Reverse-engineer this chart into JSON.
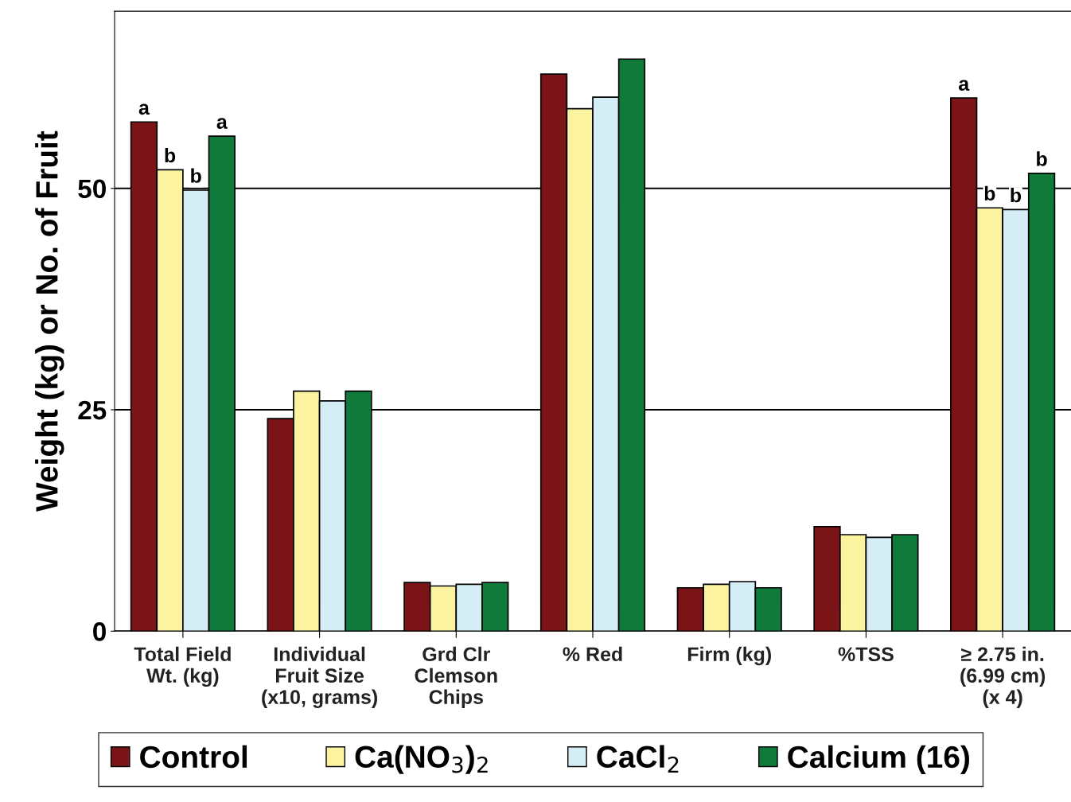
{
  "chart_data": {
    "type": "bar",
    "ylabel": "Weight (kg) or No. of Fruit",
    "categories": [
      "Total Field\nWt. (kg)",
      "Individual\nFruit Size\n(x10, grams)",
      "Grd Clr\nClemson\nChips",
      "% Red",
      "Firm (kg)",
      "%TSS",
      "≥ 2.75 in.\n(6.99 cm)\n(x 4)"
    ],
    "series": [
      {
        "name": "Control",
        "color": "#7a1416",
        "values": [
          57.5,
          24.0,
          5.5,
          62.9,
          4.9,
          11.8,
          60.2
        ],
        "value_labels": [
          "a",
          null,
          null,
          null,
          null,
          null,
          "a"
        ]
      },
      {
        "name": "Ca(NO$_{3}$)$_{2}$",
        "color": "#fbf3a0",
        "values": [
          52.1,
          27.1,
          5.1,
          59.0,
          5.3,
          10.9,
          47.8
        ],
        "value_labels": [
          "b",
          null,
          null,
          null,
          null,
          null,
          "b"
        ]
      },
      {
        "name": "CaCl$_{2}$",
        "color": "#d5edf5",
        "values": [
          49.8,
          26.0,
          5.3,
          60.3,
          5.6,
          10.6,
          47.6
        ],
        "value_labels": [
          "b",
          null,
          null,
          null,
          null,
          null,
          "b"
        ]
      },
      {
        "name": "Calcium (16)",
        "color": "#0f7a3a",
        "values": [
          55.9,
          27.1,
          5.5,
          64.6,
          4.9,
          10.9,
          51.7
        ],
        "value_labels": [
          "a",
          null,
          null,
          null,
          null,
          null,
          "b"
        ]
      }
    ],
    "ylim": [
      0,
      70
    ],
    "yticks": [
      0,
      25,
      50
    ],
    "grid": "y",
    "legend": "bottom"
  }
}
